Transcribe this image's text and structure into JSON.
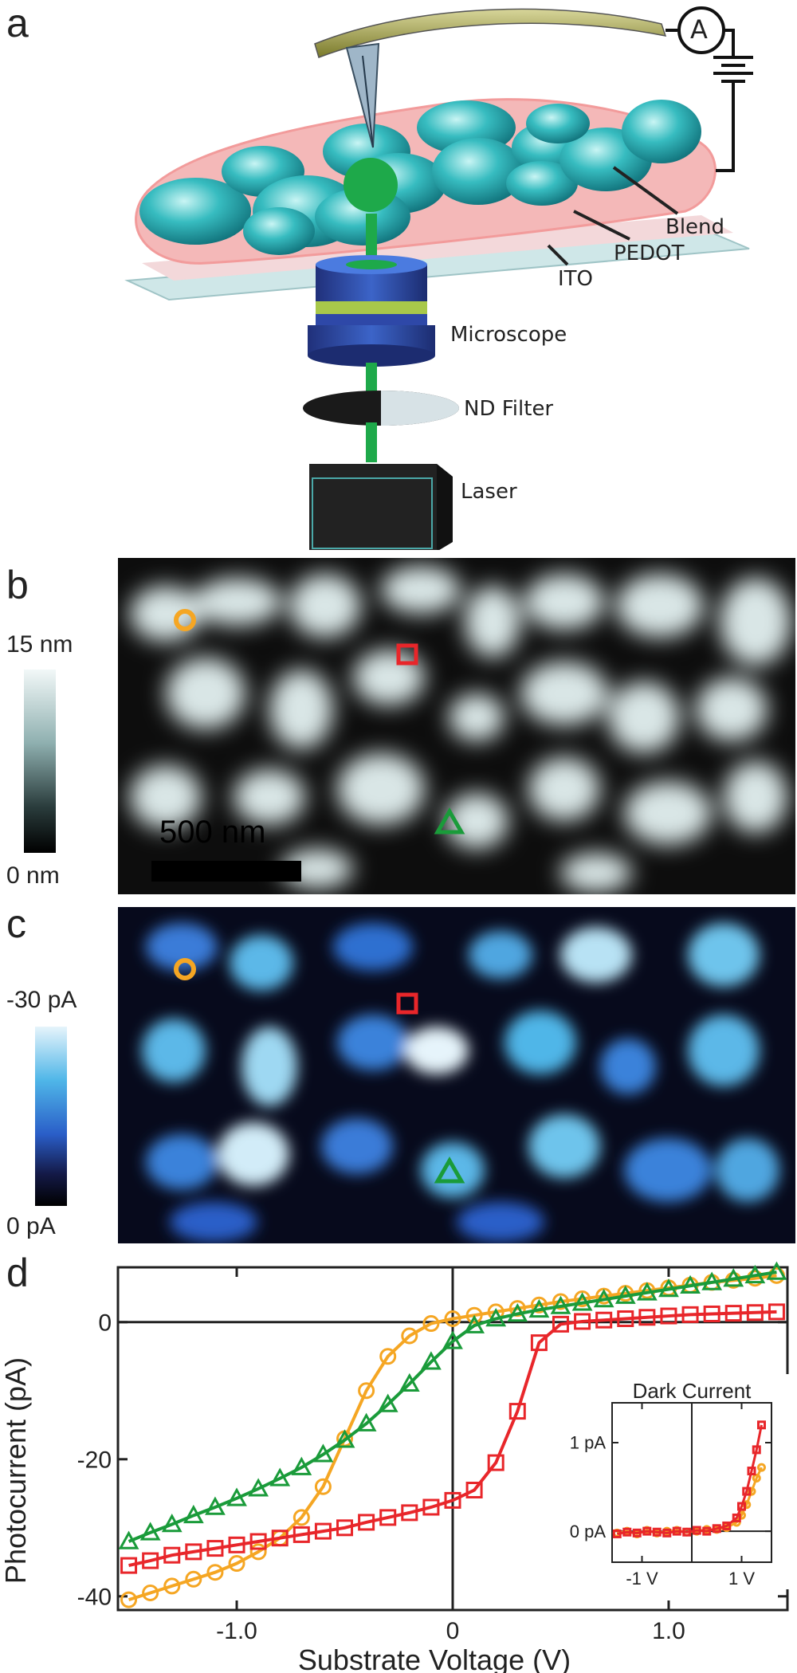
{
  "panels": {
    "a": {
      "letter": "a",
      "labels": {
        "ammeter": "A",
        "blend": "Blend",
        "pedot": "PEDOT",
        "ito": "ITO",
        "microscope": "Microscope",
        "nd_filter": "ND Filter",
        "laser": "Laser"
      }
    },
    "b": {
      "letter": "b",
      "colorbar_max": "15 nm",
      "colorbar_min": "0 nm",
      "scalebar": "500 nm"
    },
    "c": {
      "letter": "c",
      "colorbar_max": "-30 pA",
      "colorbar_min": "0 pA"
    },
    "d": {
      "letter": "d"
    }
  },
  "colors": {
    "orange": "#f5a623",
    "red": "#e8262a",
    "green": "#1a9b3a",
    "afm_bright": "#e8f0f0",
    "current_bright": "#4fb6e8"
  },
  "markers": [
    "orange-circle",
    "red-square",
    "green-triangle"
  ],
  "chart_data": [
    {
      "type": "line",
      "xlabel": "Substrate Voltage (V)",
      "ylabel": "Photocurrent (pA)",
      "xlim": [
        -1.55,
        1.55
      ],
      "ylim": [
        -42,
        8
      ],
      "xticks": [
        -1.0,
        0.0,
        1.0
      ],
      "xtick_labels": [
        "-1.0",
        "0",
        "1.0"
      ],
      "yticks": [
        0,
        -20,
        -40
      ],
      "ytick_labels": [
        "0",
        "-20",
        "-40"
      ],
      "zero_lines": true,
      "series": [
        {
          "marker": "circle",
          "color": "orange",
          "x": [
            -1.5,
            -1.4,
            -1.3,
            -1.2,
            -1.1,
            -1.0,
            -0.9,
            -0.8,
            -0.7,
            -0.6,
            -0.5,
            -0.4,
            -0.3,
            -0.2,
            -0.1,
            0.0,
            0.1,
            0.2,
            0.3,
            0.4,
            0.5,
            0.6,
            0.7,
            0.8,
            0.9,
            1.0,
            1.1,
            1.2,
            1.3,
            1.4,
            1.5
          ],
          "y": [
            -40.5,
            -39.5,
            -38.5,
            -37.5,
            -36.5,
            -35.2,
            -33.5,
            -31.5,
            -28.5,
            -24,
            -17,
            -10,
            -5,
            -2,
            -0.2,
            0.5,
            1,
            1.5,
            2,
            2.5,
            3,
            3.4,
            3.8,
            4.2,
            4.6,
            5,
            5.4,
            5.8,
            6.1,
            6.4,
            6.8
          ]
        },
        {
          "marker": "square",
          "color": "red",
          "x": [
            -1.5,
            -1.4,
            -1.3,
            -1.2,
            -1.1,
            -1.0,
            -0.9,
            -0.8,
            -0.7,
            -0.6,
            -0.5,
            -0.4,
            -0.3,
            -0.2,
            -0.1,
            0.0,
            0.1,
            0.2,
            0.3,
            0.4,
            0.5,
            0.6,
            0.7,
            0.8,
            0.9,
            1.0,
            1.1,
            1.2,
            1.3,
            1.4,
            1.5
          ],
          "y": [
            -35.5,
            -34.8,
            -34,
            -33.5,
            -33,
            -32.5,
            -32,
            -31.5,
            -31,
            -30.5,
            -30,
            -29.2,
            -28.5,
            -27.8,
            -27,
            -26,
            -24.5,
            -20.5,
            -13,
            -3,
            -0.3,
            0.1,
            0.3,
            0.5,
            0.7,
            0.9,
            1.1,
            1.2,
            1.3,
            1.4,
            1.5
          ]
        },
        {
          "marker": "triangle",
          "color": "green",
          "x": [
            -1.5,
            -1.4,
            -1.3,
            -1.2,
            -1.1,
            -1.0,
            -0.9,
            -0.8,
            -0.7,
            -0.6,
            -0.5,
            -0.4,
            -0.3,
            -0.2,
            -0.1,
            0.0,
            0.1,
            0.2,
            0.3,
            0.4,
            0.5,
            0.6,
            0.7,
            0.8,
            0.9,
            1.0,
            1.1,
            1.2,
            1.3,
            1.4,
            1.5
          ],
          "y": [
            -32,
            -30.7,
            -29.5,
            -28.2,
            -27,
            -25.7,
            -24.3,
            -22.8,
            -21.2,
            -19.3,
            -17.2,
            -14.8,
            -12,
            -9,
            -5.8,
            -2.8,
            -0.5,
            0.5,
            1.2,
            1.8,
            2.3,
            2.8,
            3.3,
            3.8,
            4.3,
            4.8,
            5.3,
            5.8,
            6.3,
            6.8,
            7.3
          ]
        }
      ]
    },
    {
      "type": "line",
      "title": "Dark Current",
      "yticks": [
        1,
        0
      ],
      "ytick_labels": [
        "1 pA",
        "0 pA"
      ],
      "xticks": [
        -1,
        1
      ],
      "xtick_labels": [
        "-1 V",
        "1 V"
      ],
      "xlim": [
        -1.6,
        1.6
      ],
      "ylim": [
        -0.35,
        1.45
      ],
      "zero_lines": true,
      "series": [
        {
          "marker": "circle",
          "color": "orange",
          "x": [
            -1.5,
            -1.3,
            -1.1,
            -0.9,
            -0.7,
            -0.5,
            -0.3,
            -0.1,
            0.1,
            0.3,
            0.5,
            0.7,
            0.9,
            1.0,
            1.1,
            1.2,
            1.3,
            1.4
          ],
          "y": [
            -0.02,
            0.0,
            -0.03,
            0.01,
            -0.02,
            0.0,
            0.01,
            -0.01,
            0.0,
            0.02,
            0.02,
            0.04,
            0.1,
            0.18,
            0.3,
            0.45,
            0.6,
            0.72
          ]
        },
        {
          "marker": "square",
          "color": "red",
          "x": [
            -1.5,
            -1.3,
            -1.1,
            -0.9,
            -0.7,
            -0.5,
            -0.3,
            -0.1,
            0.1,
            0.3,
            0.5,
            0.7,
            0.9,
            1.0,
            1.1,
            1.2,
            1.3,
            1.4
          ],
          "y": [
            -0.03,
            -0.01,
            -0.02,
            0.0,
            -0.01,
            -0.02,
            0.0,
            -0.01,
            0.01,
            0.0,
            0.03,
            0.06,
            0.15,
            0.28,
            0.45,
            0.68,
            0.92,
            1.2
          ]
        }
      ]
    }
  ]
}
